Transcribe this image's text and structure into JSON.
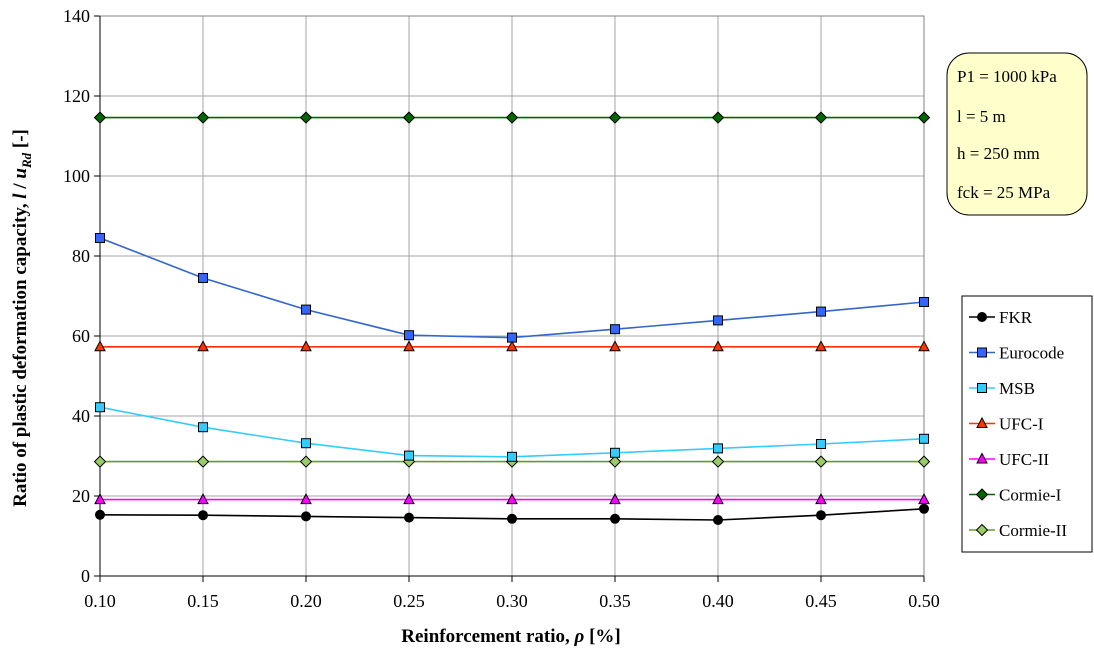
{
  "chart_data": {
    "type": "line",
    "xlabel": "Reinforcement ratio, ρ [%]",
    "ylabel": "Ratio of plastic deformation capacity, l / u_Rd [-]",
    "ylabel_parts": [
      "Ratio of plastic deformation capacity, ",
      "l",
      " / ",
      "u",
      "Rd",
      " [-]"
    ],
    "xlabel_parts": [
      "Reinforcement ratio, ",
      "ρ",
      " [%]"
    ],
    "x": [
      0.1,
      0.15,
      0.2,
      0.25,
      0.3,
      0.35,
      0.4,
      0.45,
      0.5
    ],
    "x_tick_labels": [
      "0.10",
      "0.15",
      "0.20",
      "0.25",
      "0.30",
      "0.35",
      "0.40",
      "0.45",
      "0.50"
    ],
    "xlim": [
      0.1,
      0.5
    ],
    "ylim": [
      0,
      140
    ],
    "y_ticks": [
      0,
      20,
      40,
      60,
      80,
      100,
      120,
      140
    ],
    "grid": true,
    "legend_position": "right",
    "series": [
      {
        "name": "FKR",
        "color": "#000000",
        "marker": "circle",
        "values": [
          15.3,
          15.2,
          14.9,
          14.6,
          14.3,
          14.3,
          14.0,
          15.2,
          16.8
        ]
      },
      {
        "name": "Eurocode",
        "color": "#3366CC",
        "marker": "square",
        "values": [
          84.5,
          74.5,
          66.6,
          60.2,
          59.6,
          61.7,
          63.9,
          66.1,
          68.5
        ]
      },
      {
        "name": "MSB",
        "color": "#33CCFF",
        "marker": "square",
        "values": [
          42.2,
          37.2,
          33.2,
          30.1,
          29.8,
          30.8,
          31.9,
          33.0,
          34.3
        ]
      },
      {
        "name": "UFC-I",
        "color": "#FF3300",
        "marker": "triangle",
        "values": [
          57.3,
          57.3,
          57.3,
          57.3,
          57.3,
          57.3,
          57.3,
          57.3,
          57.3
        ]
      },
      {
        "name": "UFC-II",
        "color": "#FF00FF",
        "marker": "triangle",
        "values": [
          19.1,
          19.1,
          19.1,
          19.1,
          19.1,
          19.1,
          19.1,
          19.1,
          19.1
        ]
      },
      {
        "name": "Cormie-I",
        "color": "#006600",
        "marker": "diamond",
        "values": [
          114.6,
          114.6,
          114.6,
          114.6,
          114.6,
          114.6,
          114.6,
          114.6,
          114.6
        ]
      },
      {
        "name": "Cormie-II",
        "color": "#669933",
        "marker": "diamond",
        "values": [
          28.6,
          28.6,
          28.6,
          28.6,
          28.6,
          28.6,
          28.6,
          28.6,
          28.6
        ]
      }
    ],
    "annotation": {
      "lines": [
        "P1 = 1000 kPa",
        "l = 5 m",
        "h = 250 mm",
        "fck = 25 MPa"
      ],
      "background": "#FFFFCC"
    },
    "colors": {
      "grid": "#A6A6A6",
      "marker_fill": {
        "FKR": "#000000",
        "Eurocode": "#3366FF",
        "MSB": "#33CCFF",
        "UFC-I": "#FF3300",
        "UFC-II": "#FF00FF",
        "Cormie-I": "#006600",
        "Cormie-II": "#99CC66"
      }
    }
  }
}
